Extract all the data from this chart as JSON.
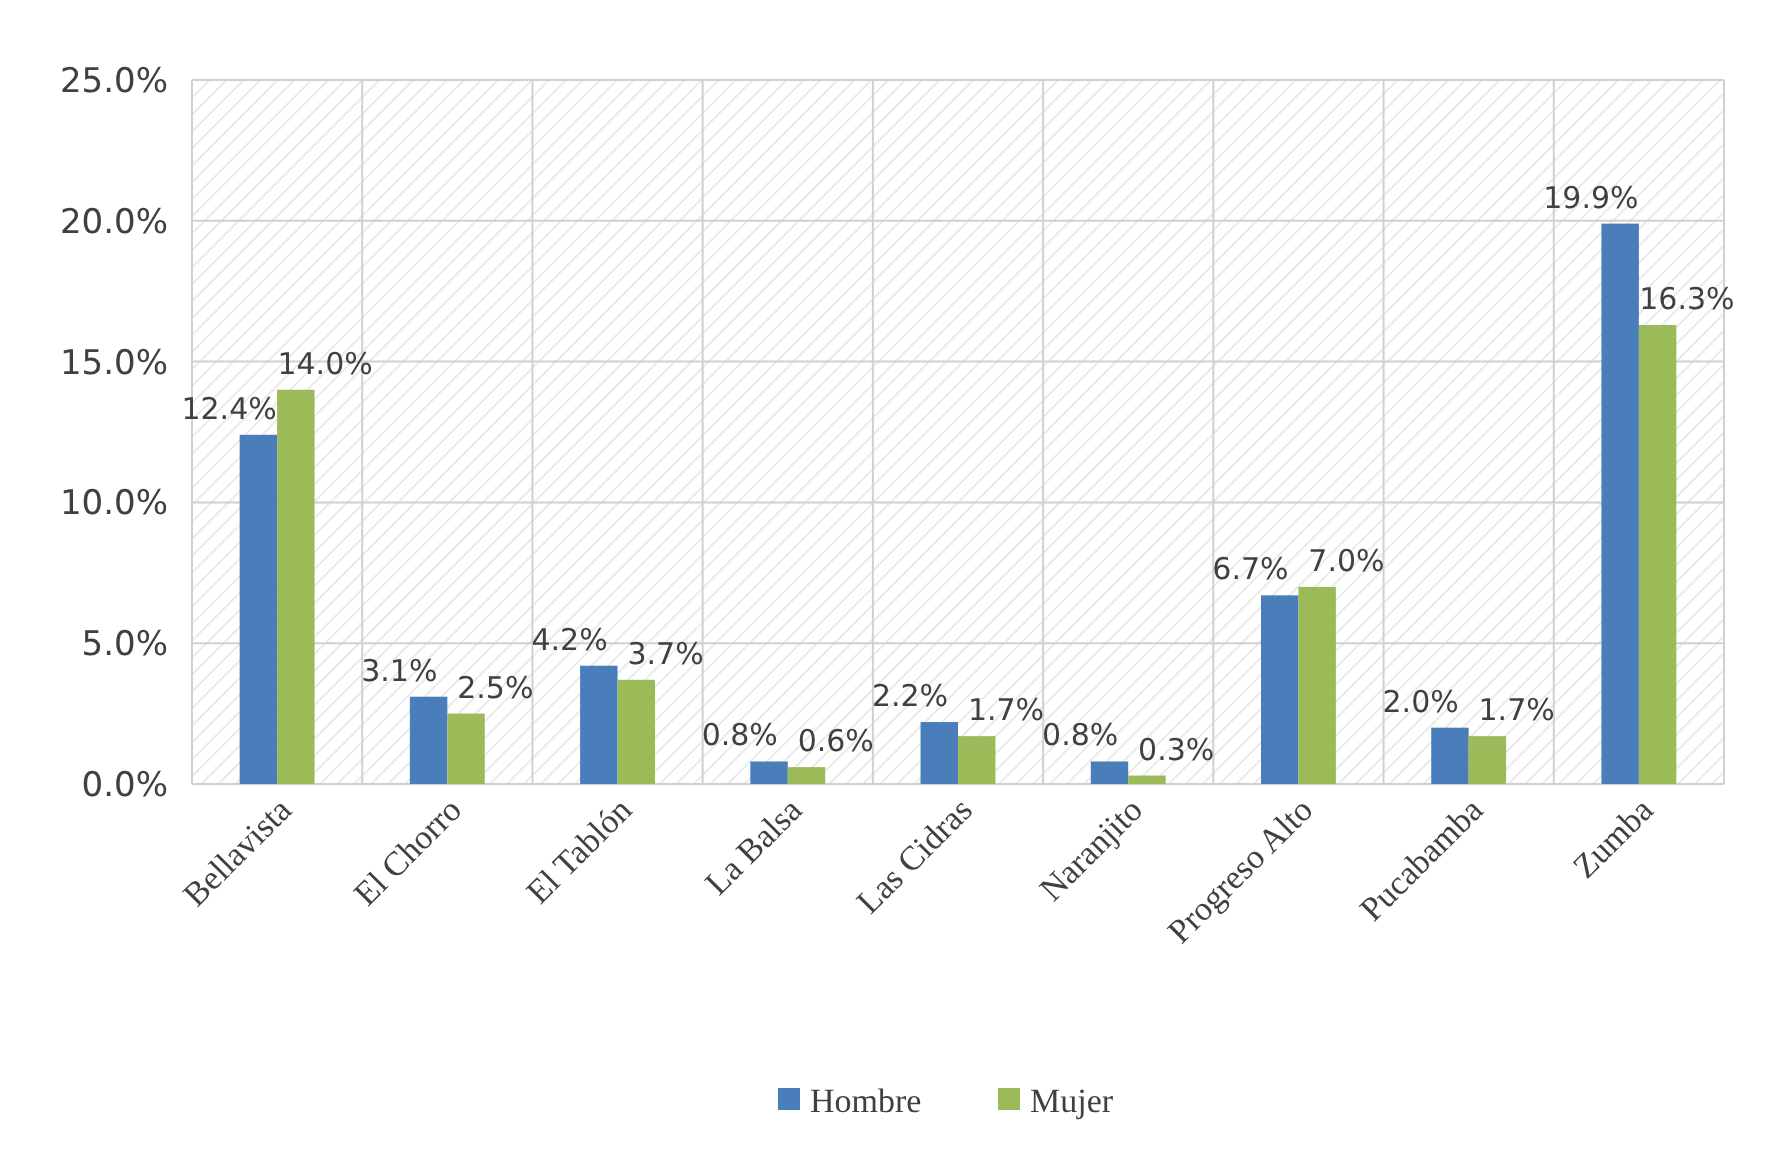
{
  "chart_data": {
    "type": "bar",
    "categories": [
      "Bellavista",
      "El Chorro",
      "El Tablón",
      "La Balsa",
      "Las Cidras",
      "Naranjito",
      "Progreso Alto",
      "Pucabamba",
      "Zumba"
    ],
    "series": [
      {
        "name": "Hombre",
        "color": "#4a7ebb",
        "values": [
          12.4,
          3.1,
          4.2,
          0.8,
          2.2,
          0.8,
          6.7,
          2.0,
          19.9
        ],
        "value_labels": [
          "12.4%",
          "3.1%",
          "4.2%",
          "0.8%",
          "2.2%",
          "0.8%",
          "6.7%",
          "2.0%",
          "19.9%"
        ]
      },
      {
        "name": "Mujer",
        "color": "#9bbb59",
        "values": [
          14.0,
          2.5,
          3.7,
          0.6,
          1.7,
          0.3,
          7.0,
          1.7,
          16.3
        ],
        "value_labels": [
          "14.0%",
          "2.5%",
          "3.7%",
          "0.6%",
          "1.7%",
          "0.3%",
          "7.0%",
          "1.7%",
          "16.3%"
        ]
      }
    ],
    "ylim": [
      0,
      25
    ],
    "yticks": [
      {
        "value": 0,
        "label": "0.0%"
      },
      {
        "value": 5,
        "label": "5.0%"
      },
      {
        "value": 10,
        "label": "10.0%"
      },
      {
        "value": 15,
        "label": "15.0%"
      },
      {
        "value": 20,
        "label": "20.0%"
      },
      {
        "value": 25,
        "label": "25.0%"
      }
    ],
    "grid": true,
    "legend": "bottom"
  }
}
